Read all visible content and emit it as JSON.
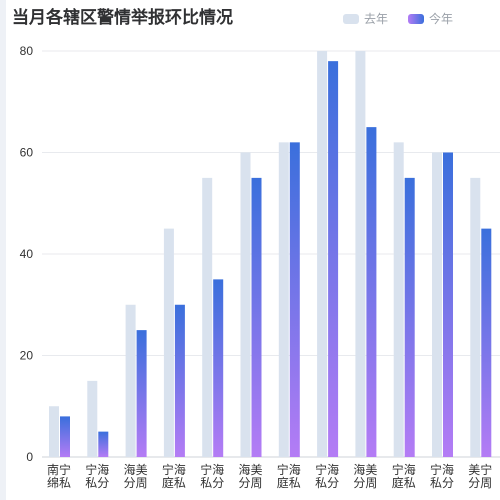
{
  "title": "当月各辖区警情举报环比情况",
  "legend": [
    {
      "name": "去年",
      "color": "#d9e2ee"
    },
    {
      "name": "今年",
      "color": "#5b6cf0"
    }
  ],
  "colors": {
    "last_year": "#d9e2ee",
    "this_year_top": "#3a6fdc",
    "this_year_bottom": "#b47cf5",
    "grid": "#e8eaee",
    "tick_text": "#333333"
  },
  "chart_data": {
    "type": "bar",
    "title": "当月各辖区警情举报环比情况",
    "xlabel": "",
    "ylabel": "",
    "ylim": [
      0,
      80
    ],
    "yticks": [
      0,
      20,
      40,
      60,
      80
    ],
    "grid": true,
    "legend_position": "top-right",
    "categories": [
      [
        "南宁",
        "绵私"
      ],
      [
        "宁海",
        "私分"
      ],
      [
        "海美",
        "分周"
      ],
      [
        "宁海",
        "庭私"
      ],
      [
        "宁海",
        "私分"
      ],
      [
        "海美",
        "分周"
      ],
      [
        "宁海",
        "庭私"
      ],
      [
        "宁海",
        "私分"
      ],
      [
        "海美",
        "分周"
      ],
      [
        "宁海",
        "庭私"
      ],
      [
        "宁海",
        "私分"
      ],
      [
        "美宁",
        "分周"
      ]
    ],
    "series": [
      {
        "name": "去年",
        "values": [
          10,
          15,
          30,
          45,
          55,
          60,
          62,
          80,
          80,
          62,
          60,
          55
        ]
      },
      {
        "name": "今年",
        "values": [
          8,
          5,
          25,
          30,
          35,
          55,
          62,
          78,
          65,
          55,
          60,
          45
        ]
      }
    ]
  }
}
